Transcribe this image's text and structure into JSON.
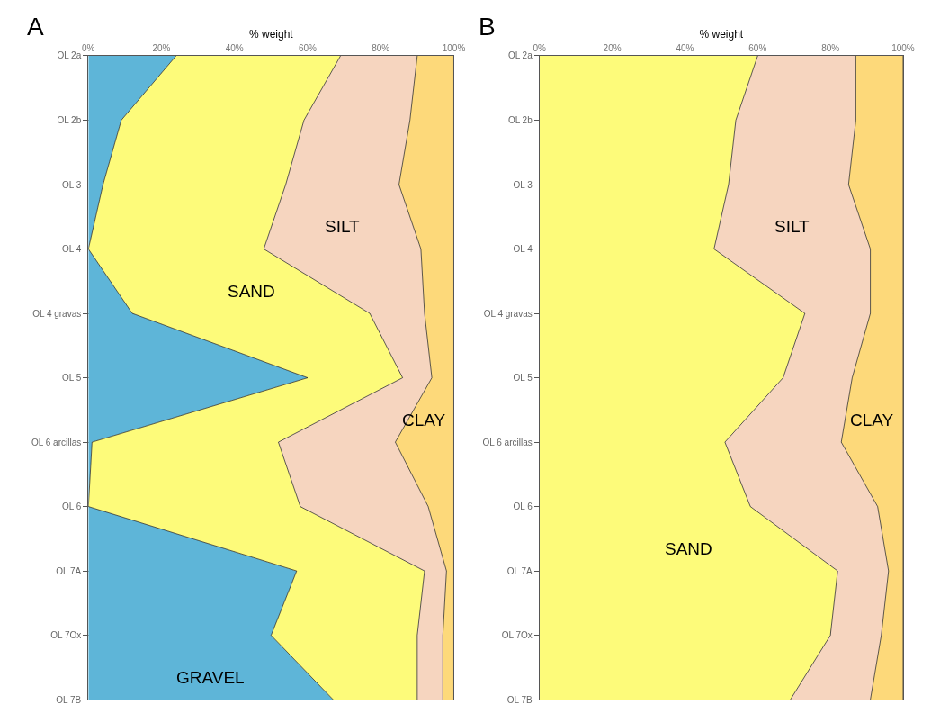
{
  "chart_data": [
    {
      "type": "area",
      "title": "A",
      "xlabel": "% weight",
      "stacked": true,
      "orientation": "horizontal",
      "grid": true,
      "legend": false,
      "categories": [
        "OL 2a",
        "OL 2b",
        "OL 3",
        "OL 4",
        "OL 4 gravas",
        "OL 5",
        "OL 6 arcillas",
        "OL 6",
        "OL 7A",
        "OL 7Ox",
        "OL 7B"
      ],
      "xlim": [
        0,
        100
      ],
      "xticks": [
        {
          "value": 0,
          "label": "0%"
        },
        {
          "value": 20,
          "label": "20%"
        },
        {
          "value": 40,
          "label": "40%"
        },
        {
          "value": 60,
          "label": "60%"
        },
        {
          "value": 80,
          "label": "80%"
        },
        {
          "value": 100,
          "label": "100%"
        }
      ],
      "series": [
        {
          "name": "GRAVEL",
          "color": "#5eb5d8",
          "values": [
            24,
            9,
            4,
            0,
            12,
            60,
            1,
            0,
            57,
            50,
            67
          ]
        },
        {
          "name": "SAND",
          "color": "#fdfb7a",
          "values": [
            45,
            50,
            50,
            48,
            65,
            26,
            51,
            58,
            35,
            40,
            23
          ]
        },
        {
          "name": "SILT",
          "color": "#f6d5bf",
          "values": [
            21,
            29,
            31,
            43,
            15,
            8,
            32,
            35,
            6,
            7,
            7
          ]
        },
        {
          "name": "CLAY",
          "color": "#fdd97a",
          "values": [
            10,
            12,
            15,
            9,
            8,
            6,
            16,
            7,
            2,
            3,
            3
          ]
        }
      ]
    },
    {
      "type": "area",
      "title": "B",
      "xlabel": "% weight",
      "stacked": true,
      "orientation": "horizontal",
      "grid": true,
      "legend": false,
      "categories": [
        "OL 2a",
        "OL 2b",
        "OL 3",
        "OL 4",
        "OL 4 gravas",
        "OL 5",
        "OL 6 arcillas",
        "OL 6",
        "OL 7A",
        "OL 7Ox",
        "OL 7B"
      ],
      "xlim": [
        0,
        100
      ],
      "xticks": [
        {
          "value": 0,
          "label": "0%"
        },
        {
          "value": 20,
          "label": "20%"
        },
        {
          "value": 40,
          "label": "40%"
        },
        {
          "value": 60,
          "label": "60%"
        },
        {
          "value": 80,
          "label": "80%"
        },
        {
          "value": 100,
          "label": "100%"
        }
      ],
      "series": [
        {
          "name": "SAND",
          "color": "#fdfb7a",
          "values": [
            60,
            54,
            52,
            48,
            73,
            67,
            51,
            58,
            82,
            80,
            69
          ]
        },
        {
          "name": "SILT",
          "color": "#f6d5bf",
          "values": [
            27,
            33,
            33,
            43,
            18,
            19,
            32,
            35,
            14,
            14,
            22
          ]
        },
        {
          "name": "CLAY",
          "color": "#fdd97a",
          "values": [
            13,
            13,
            15,
            9,
            9,
            14,
            17,
            7,
            4,
            6,
            9
          ]
        }
      ]
    }
  ]
}
